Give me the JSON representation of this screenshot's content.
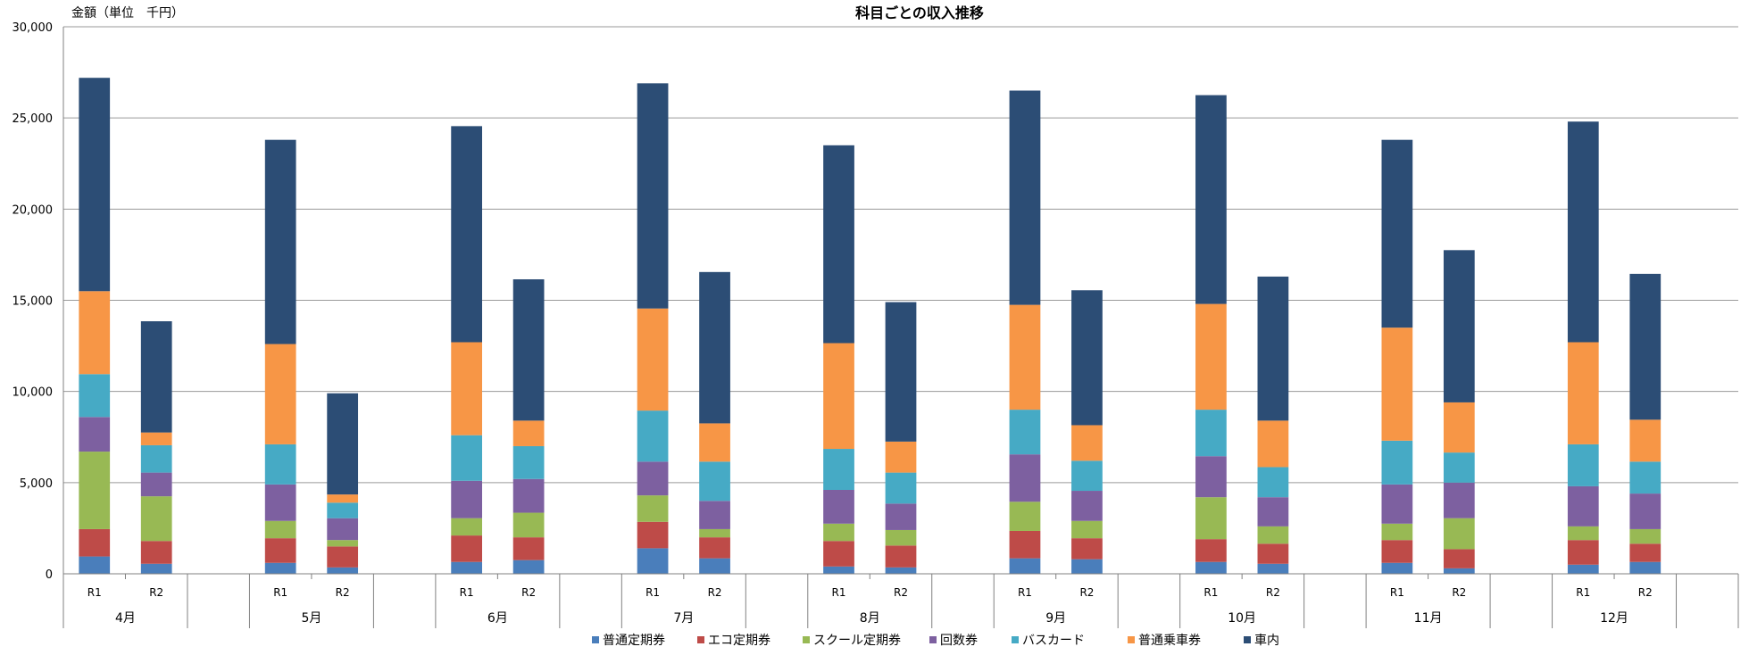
{
  "chart_data": {
    "type": "bar",
    "stacked": true,
    "title": "科目ごとの収入推移",
    "unit_label": "金額（単位　千円）",
    "ylim": [
      0,
      30000
    ],
    "yticks": [
      "0",
      "5,000",
      "10,000",
      "15,000",
      "20,000",
      "25,000",
      "30,000"
    ],
    "ytick_values": [
      0,
      5000,
      10000,
      15000,
      20000,
      25000,
      30000
    ],
    "grid": true,
    "legend_position": "bottom",
    "colors": [
      "#4a7ebb",
      "#be4b48",
      "#98b954",
      "#7d60a0",
      "#46aac5",
      "#f79646",
      "#2c4d75"
    ],
    "months": [
      "4月",
      "5月",
      "6月",
      "7月",
      "8月",
      "9月",
      "10月",
      "11月",
      "12月"
    ],
    "sub_categories": [
      "R1",
      "R2"
    ],
    "series": [
      {
        "name": "普通定期券",
        "values": [
          [
            950,
            550
          ],
          [
            600,
            350
          ],
          [
            650,
            750
          ],
          [
            1400,
            850
          ],
          [
            400,
            350
          ],
          [
            850,
            800
          ],
          [
            650,
            550
          ],
          [
            600,
            300
          ],
          [
            500,
            650
          ]
        ]
      },
      {
        "name": "エコ定期券",
        "values": [
          [
            1500,
            1250
          ],
          [
            1350,
            1150
          ],
          [
            1450,
            1250
          ],
          [
            1450,
            1150
          ],
          [
            1400,
            1200
          ],
          [
            1500,
            1150
          ],
          [
            1250,
            1100
          ],
          [
            1250,
            1050
          ],
          [
            1350,
            1000
          ]
        ]
      },
      {
        "name": "スクール定期券",
        "values": [
          [
            4250,
            2450
          ],
          [
            950,
            350
          ],
          [
            950,
            1350
          ],
          [
            1450,
            450
          ],
          [
            950,
            850
          ],
          [
            1600,
            950
          ],
          [
            2300,
            950
          ],
          [
            900,
            1700
          ],
          [
            750,
            800
          ]
        ]
      },
      {
        "name": "回数券",
        "values": [
          [
            1900,
            1300
          ],
          [
            2000,
            1200
          ],
          [
            2050,
            1850
          ],
          [
            1850,
            1550
          ],
          [
            1850,
            1450
          ],
          [
            2600,
            1650
          ],
          [
            2250,
            1600
          ],
          [
            2150,
            1950
          ],
          [
            2200,
            1950
          ]
        ]
      },
      {
        "name": "バスカード",
        "values": [
          [
            2350,
            1500
          ],
          [
            2200,
            850
          ],
          [
            2500,
            1800
          ],
          [
            2800,
            2150
          ],
          [
            2250,
            1700
          ],
          [
            2450,
            1650
          ],
          [
            2550,
            1650
          ],
          [
            2400,
            1650
          ],
          [
            2300,
            1750
          ]
        ]
      },
      {
        "name": "普通乗車券",
        "values": [
          [
            4550,
            700
          ],
          [
            5500,
            450
          ],
          [
            5100,
            1400
          ],
          [
            5600,
            2100
          ],
          [
            5800,
            1700
          ],
          [
            5750,
            1950
          ],
          [
            5800,
            2550
          ],
          [
            6200,
            2750
          ],
          [
            5600,
            2300
          ]
        ]
      },
      {
        "name": "車内",
        "values": [
          [
            11700,
            6100
          ],
          [
            11200,
            5550
          ],
          [
            11850,
            7750
          ],
          [
            12350,
            8300
          ],
          [
            10850,
            7650
          ],
          [
            11750,
            7400
          ],
          [
            11450,
            7900
          ],
          [
            10300,
            8350
          ],
          [
            12100,
            8000
          ]
        ]
      }
    ]
  }
}
